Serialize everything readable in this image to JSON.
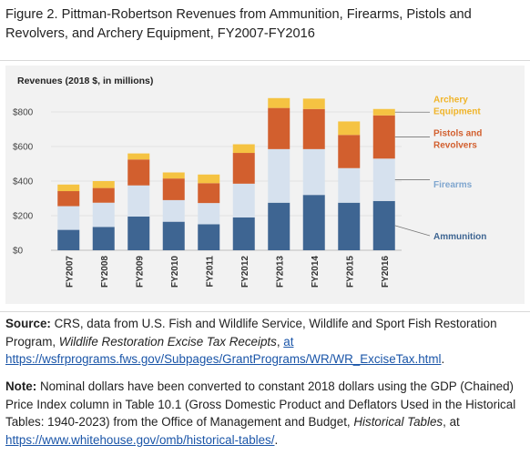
{
  "figure": {
    "title": "Figure 2. Pittman-Robertson Revenues from Ammunition, Firearms, Pistols and Revolvers, and Archery Equipment, FY2007-FY2016"
  },
  "chart_data": {
    "type": "bar",
    "stacked": true,
    "title": "Revenues (2018 $, in millions)",
    "categories": [
      "FY2007",
      "FY2008",
      "FY2009",
      "FY2010",
      "FY2011",
      "FY2012",
      "FY2013",
      "FY2014",
      "FY2015",
      "FY2016"
    ],
    "yticks": [
      "$0",
      "$200",
      "$400",
      "$600",
      "$800"
    ],
    "ylim": [
      0,
      900
    ],
    "grid": true,
    "legend": "right",
    "series": [
      {
        "name": "Ammunition",
        "color": "#3e6592",
        "values": [
          118,
          135,
          195,
          165,
          150,
          190,
          275,
          320,
          275,
          285
        ]
      },
      {
        "name": "Firearms",
        "color": "#d6e1ee",
        "values": [
          137,
          140,
          180,
          125,
          123,
          195,
          310,
          265,
          200,
          245
        ]
      },
      {
        "name": "Pistols and\nRevolvers",
        "color": "#d25f2e",
        "values": [
          87,
          85,
          150,
          125,
          115,
          178,
          238,
          232,
          192,
          250
        ]
      },
      {
        "name": "Archery\nEquipment",
        "color": "#f5c342",
        "values": [
          38,
          40,
          35,
          35,
          50,
          50,
          57,
          60,
          78,
          37
        ]
      }
    ]
  },
  "source": {
    "label": "Source:",
    "text1": " CRS, data from U.S. Fish and Wildlife Service, Wildlife and Sport Fish Restoration Program, ",
    "italic": "Wildlife Restoration Excise Tax Receipts",
    "text2": ", ",
    "link": "at https://wsfrprograms.fws.gov/Subpages/GrantPrograms/WR/WR_ExciseTax.html",
    "end": "."
  },
  "note": {
    "label": "Note:",
    "text1": " Nominal dollars have been converted to constant 2018 dollars using the GDP (Chained) Price Index column in Table 10.1 (Gross Domestic Product and Deflators Used in the Historical Tables: 1940-2023) from the Office of Management and Budget, ",
    "italic": "Historical Tables",
    "text2": ", at ",
    "link": "https://www.whitehouse.gov/omb/historical-tables/",
    "end": "."
  }
}
